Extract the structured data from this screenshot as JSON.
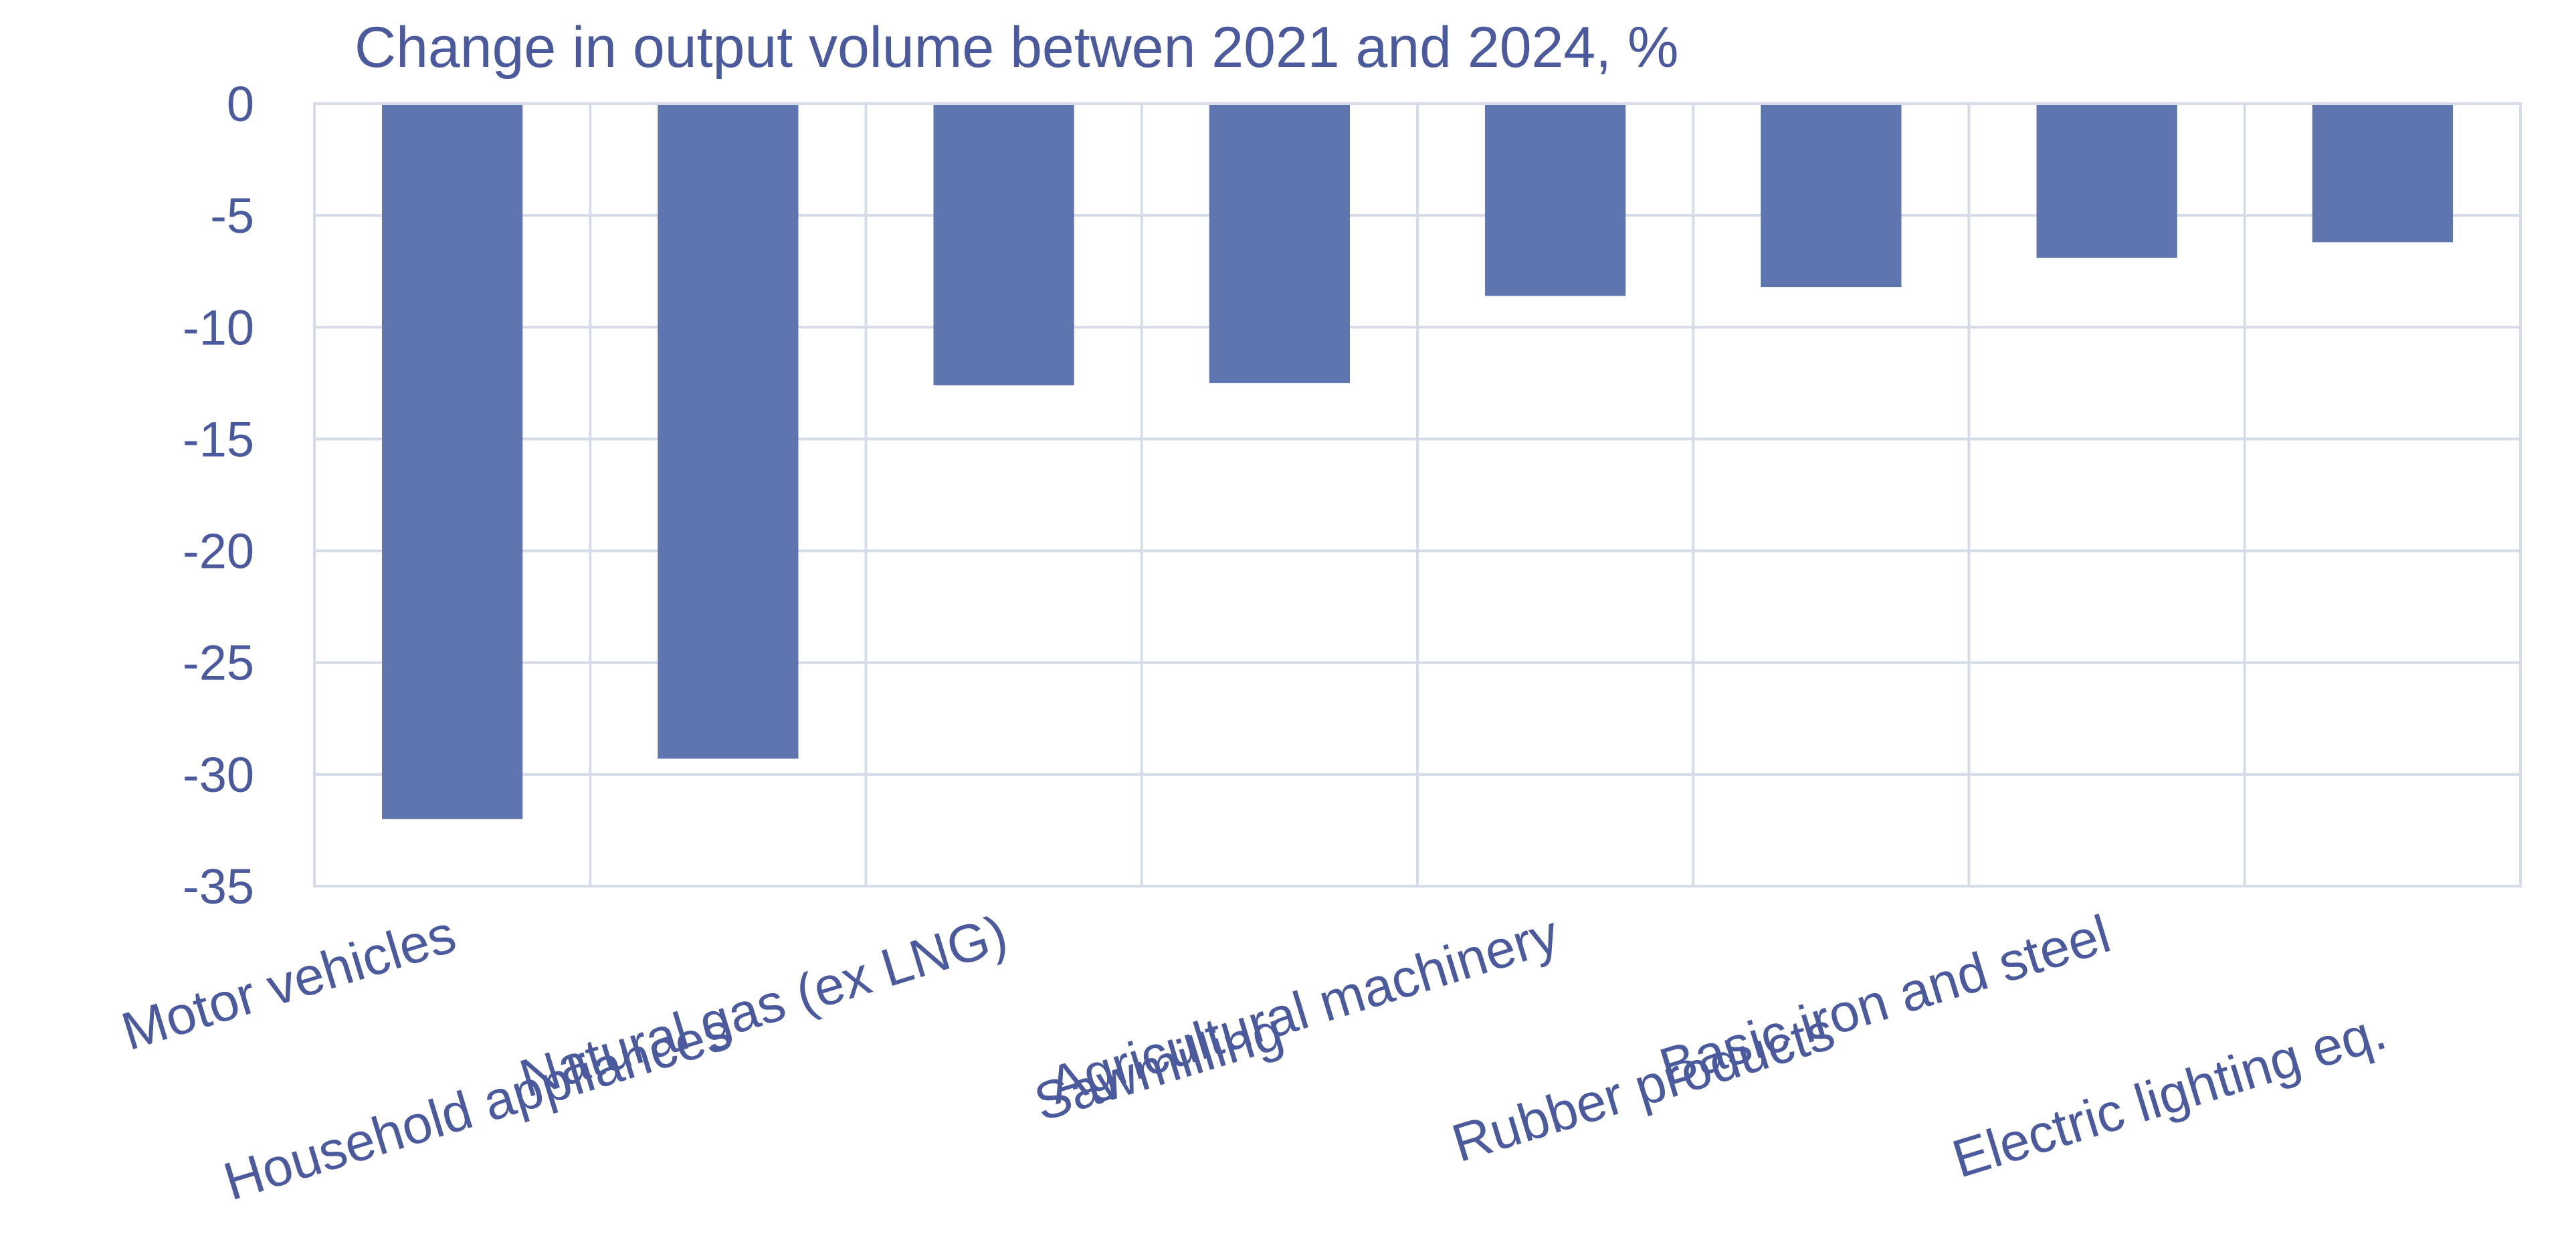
{
  "chart_data": {
    "type": "bar",
    "title": "Change in output volume betwen 2021 and 2024, %",
    "xlabel": "",
    "ylabel": "",
    "categories": [
      "Motor vehicles",
      "Household appliances",
      "Natural gas (ex LNG)",
      "Sawmilling",
      "Agricultural machinery",
      "Rubber products",
      "Basic iron and steel",
      "Electric lighting eq."
    ],
    "values": [
      -32.0,
      -29.3,
      -12.6,
      -12.5,
      -8.6,
      -8.2,
      -6.9,
      -6.2
    ],
    "ylim": [
      -35,
      0
    ],
    "yticks": [
      0,
      -5,
      -10,
      -15,
      -20,
      -25,
      -30,
      -35
    ],
    "grid": true,
    "legend": "none",
    "bar_color": "#5e75b0",
    "text_color": "#4a5a9c",
    "grid_color": "#d5dbe8"
  }
}
